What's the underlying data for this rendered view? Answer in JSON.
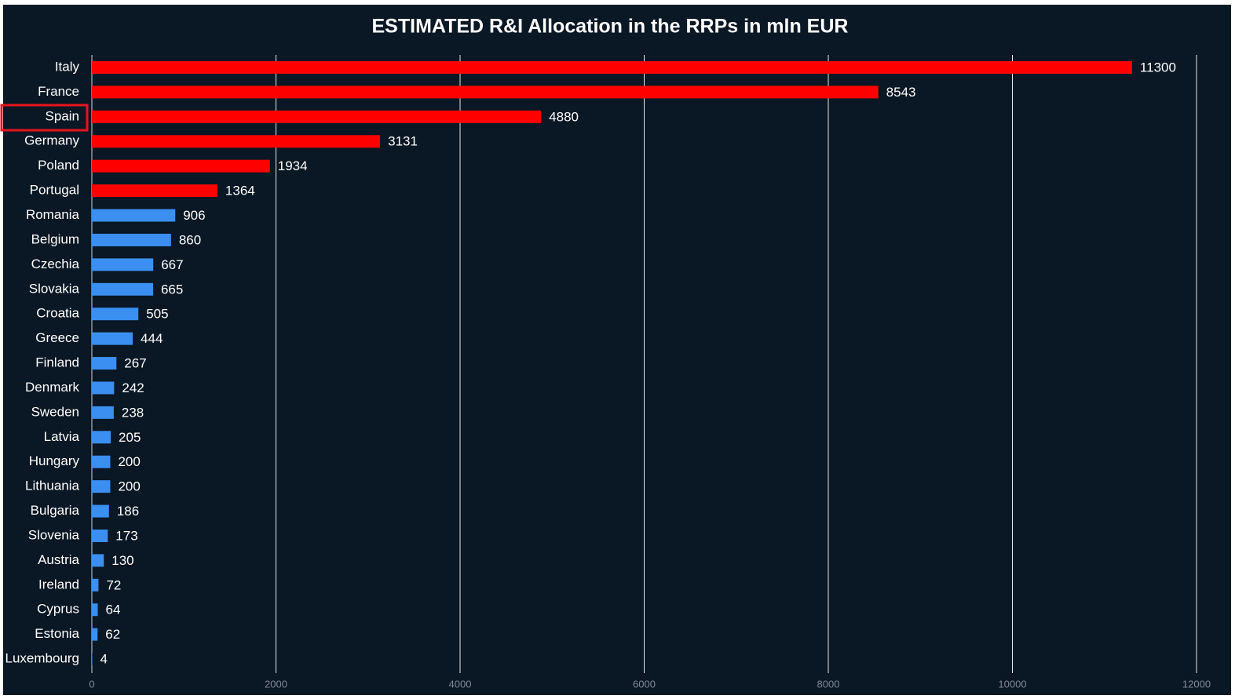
{
  "chart_data": {
    "type": "barh",
    "title": "ESTIMATED R&I Allocation in the RRPs in mln EUR",
    "categories": [
      "Italy",
      "France",
      "Spain",
      "Germany",
      "Poland",
      "Portugal",
      "Romania",
      "Belgium",
      "Czechia",
      "Slovakia",
      "Croatia",
      "Greece",
      "Finland",
      "Denmark",
      "Sweden",
      "Latvia",
      "Hungary",
      "Lithuania",
      "Bulgaria",
      "Slovenia",
      "Austria",
      "Ireland",
      "Cyprus",
      "Estonia",
      "Luxembourg"
    ],
    "values": [
      11300,
      8543,
      4880,
      3131,
      1934,
      1364,
      906,
      860,
      667,
      665,
      505,
      444,
      267,
      242,
      238,
      205,
      200,
      200,
      186,
      173,
      130,
      72,
      64,
      62,
      4
    ],
    "colors": [
      "#ff0000",
      "#ff0000",
      "#ff0000",
      "#ff0000",
      "#ff0000",
      "#ff0000",
      "#3a8ff0",
      "#3a8ff0",
      "#3a8ff0",
      "#3a8ff0",
      "#3a8ff0",
      "#3a8ff0",
      "#3a8ff0",
      "#3a8ff0",
      "#3a8ff0",
      "#3a8ff0",
      "#3a8ff0",
      "#3a8ff0",
      "#3a8ff0",
      "#3a8ff0",
      "#3a8ff0",
      "#3a8ff0",
      "#3a8ff0",
      "#3a8ff0",
      "#3a8ff0"
    ],
    "xlim": [
      0,
      12000
    ],
    "xticks": [
      0,
      2000,
      4000,
      6000,
      8000,
      10000,
      12000
    ],
    "grid": true
  }
}
